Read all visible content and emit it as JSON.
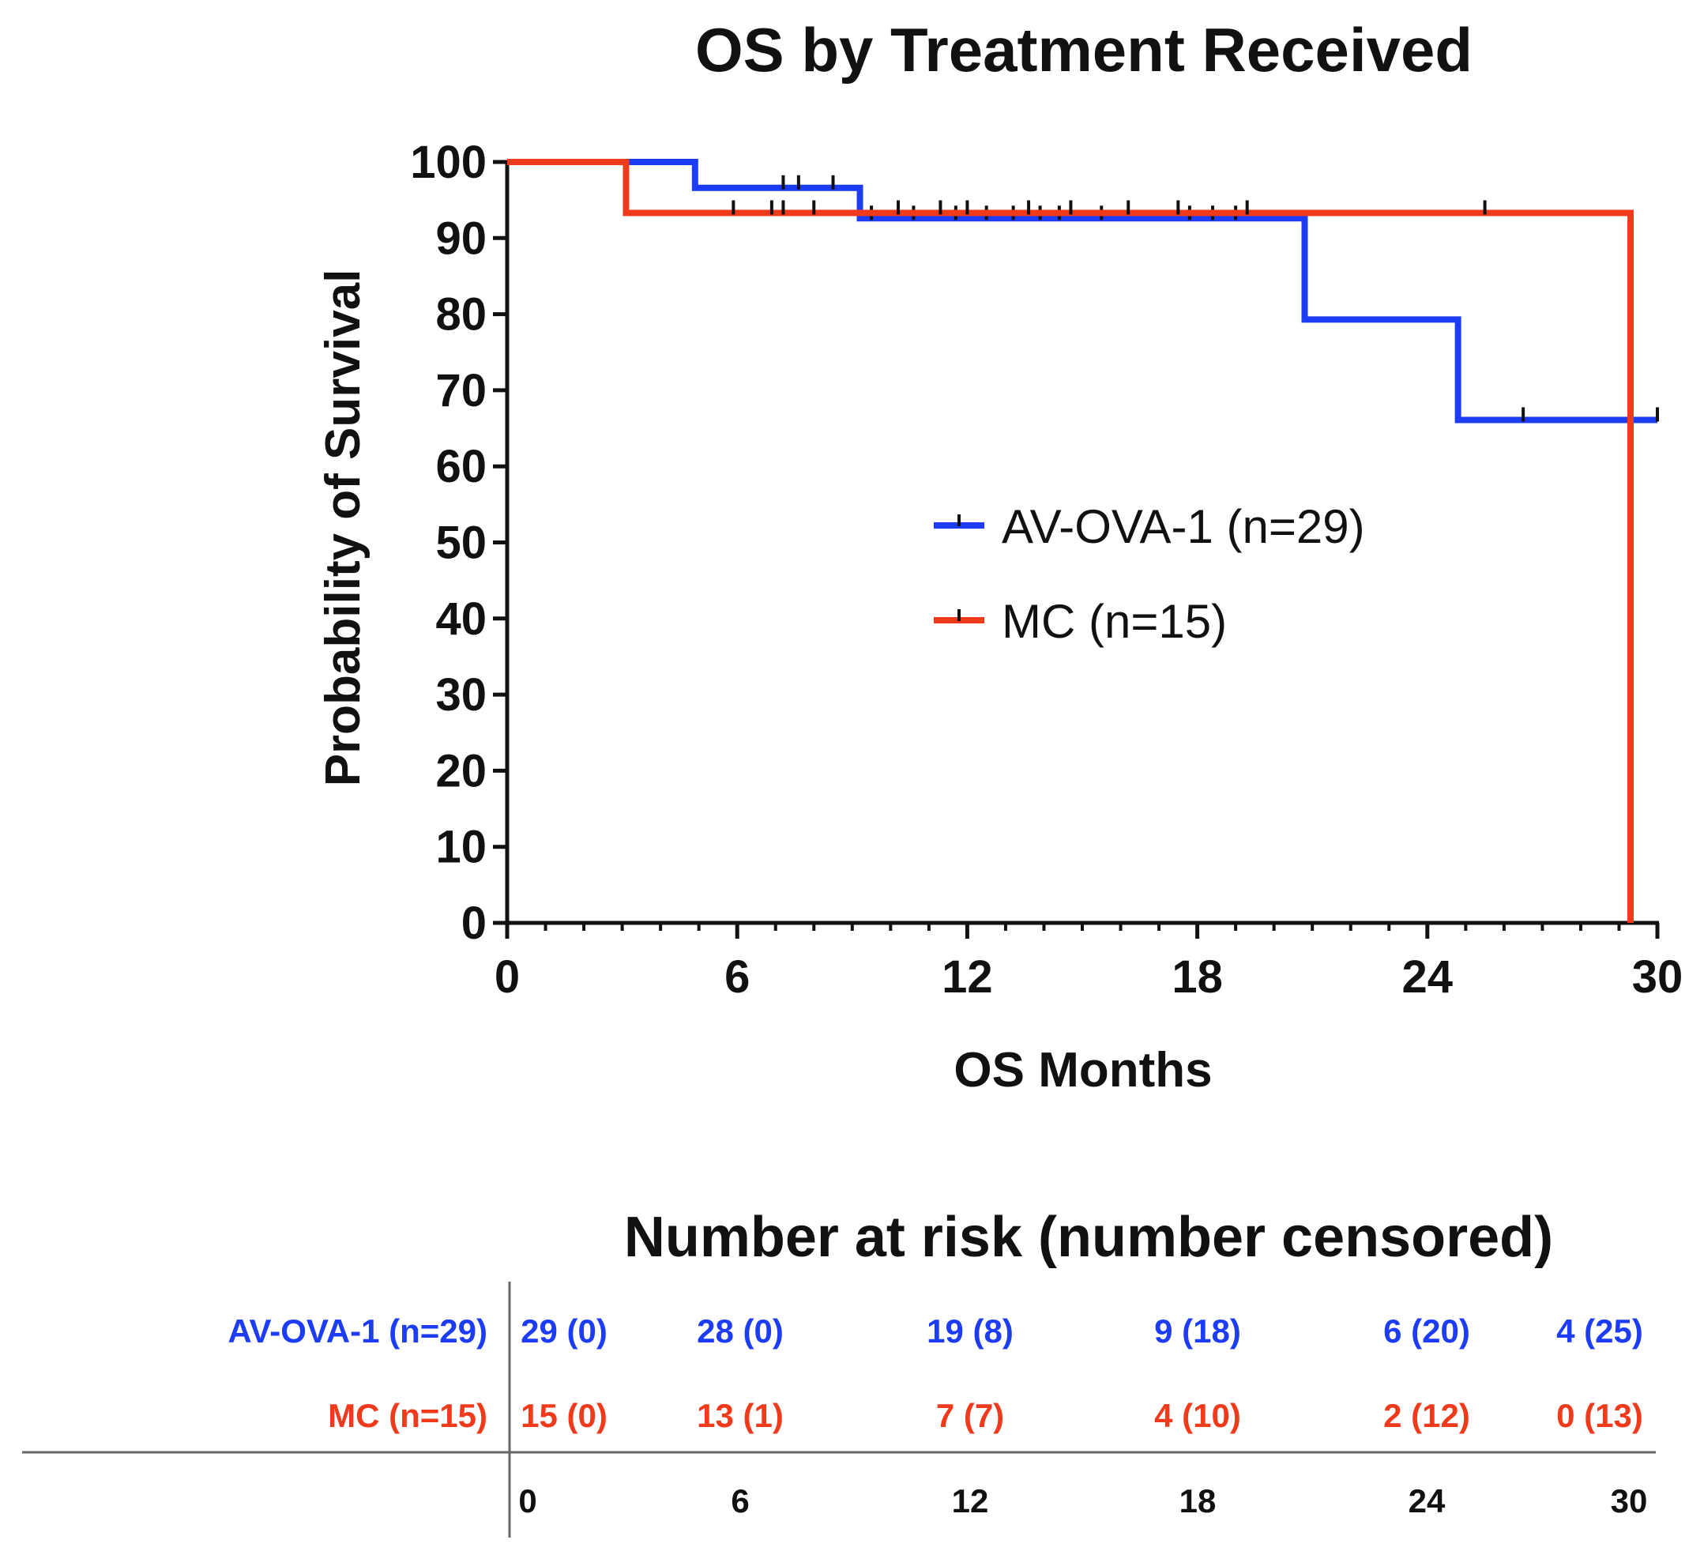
{
  "chart_data": {
    "type": "line",
    "subtype": "kaplan-meier",
    "title": "OS by Treatment Received",
    "xlabel": "OS Months",
    "ylabel": "Probability of Survival",
    "xlim": [
      0,
      30
    ],
    "ylim": [
      0,
      100
    ],
    "xticks": [
      0,
      6,
      12,
      18,
      24,
      30
    ],
    "yticks": [
      0,
      10,
      20,
      30,
      40,
      50,
      60,
      70,
      80,
      90,
      100
    ],
    "x_minor_step": 1,
    "legend_position": "center-right",
    "series": [
      {
        "name": "AV-OVA-1 (n=29)",
        "color": "#1c3cf5",
        "steps": [
          [
            0,
            100
          ],
          [
            4.9,
            96.6
          ],
          [
            9.2,
            92.6
          ],
          [
            20.8,
            79.3
          ],
          [
            24.8,
            66.1
          ],
          [
            30,
            66.1
          ]
        ],
        "censored": [
          [
            7.2,
            96.6
          ],
          [
            7.6,
            96.6
          ],
          [
            8.5,
            96.6
          ],
          [
            9.5,
            92.6
          ],
          [
            10.6,
            92.6
          ],
          [
            11.7,
            92.6
          ],
          [
            12.5,
            92.6
          ],
          [
            13.2,
            92.6
          ],
          [
            13.9,
            92.6
          ],
          [
            14.4,
            92.6
          ],
          [
            15.5,
            92.6
          ],
          [
            17.8,
            92.6
          ],
          [
            18.4,
            92.6
          ],
          [
            19.0,
            92.6
          ],
          [
            26.5,
            66.1
          ],
          [
            30,
            66.1
          ]
        ]
      },
      {
        "name": "MC (n=15)",
        "color": "#f03a1c",
        "steps": [
          [
            0,
            100
          ],
          [
            3.1,
            93.3
          ],
          [
            29.3,
            93.3
          ],
          [
            29.3,
            0
          ]
        ],
        "censored": [
          [
            5.9,
            93.3
          ],
          [
            6.9,
            93.3
          ],
          [
            7.2,
            93.3
          ],
          [
            8.0,
            93.3
          ],
          [
            10.2,
            93.3
          ],
          [
            11.3,
            93.3
          ],
          [
            12.0,
            93.3
          ],
          [
            13.6,
            93.3
          ],
          [
            14.7,
            93.3
          ],
          [
            16.2,
            93.3
          ],
          [
            17.5,
            93.3
          ],
          [
            19.3,
            93.3
          ],
          [
            25.5,
            93.3
          ]
        ]
      }
    ],
    "risk_table": {
      "title": "Number at risk (number censored)",
      "times": [
        "0",
        "6",
        "12",
        "18",
        "24",
        "30"
      ],
      "rows": [
        {
          "label": "AV-OVA-1 (n=29)",
          "color": "#1c3cf5",
          "cells": [
            "29 (0)",
            "28 (0)",
            "19 (8)",
            "9 (18)",
            "6 (20)",
            "4 (25)"
          ]
        },
        {
          "label": "MC (n=15)",
          "color": "#f03a1c",
          "cells": [
            "15 (0)",
            "13 (1)",
            "7 (7)",
            "4 (10)",
            "2 (12)",
            "0 (13)"
          ]
        }
      ]
    }
  }
}
